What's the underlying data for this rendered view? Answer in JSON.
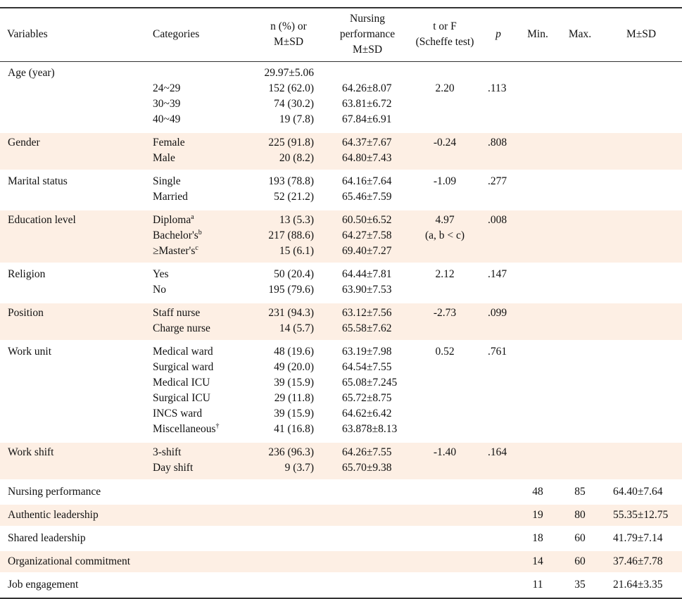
{
  "table": {
    "header": [
      "Variables",
      "Categories",
      "n (%) or M±SD",
      "Nursing performance M±SD",
      "t or F (Scheffe test)",
      "p",
      "Min.",
      "Max.",
      "M±SD"
    ],
    "header_lines": [
      [
        "Variables"
      ],
      [
        "Categories"
      ],
      [
        "n (%) or",
        "M±SD"
      ],
      [
        "Nursing",
        "performance",
        "M±SD"
      ],
      [
        "t or F",
        "(Scheffe  test)"
      ],
      [
        "p"
      ],
      [
        "Min."
      ],
      [
        "Max."
      ],
      [
        "M±SD"
      ]
    ],
    "groups": [
      {
        "variable": "Age (year)",
        "rows": [
          {
            "n": "29.97±5.06"
          },
          {
            "category": "24~29",
            "n": "152 (62.0)",
            "mean": "64.26±8.07",
            "t": "2.20",
            "p": ".113"
          },
          {
            "category": "30~39",
            "n": "74 (30.2)",
            "mean": "63.81±6.72"
          },
          {
            "category": "40~49",
            "n": "19 (7.8)",
            "mean": "67.84±6.91"
          }
        ]
      },
      {
        "variable": "Gender",
        "rows": [
          {
            "category": "Female",
            "n": "225 (91.8)",
            "mean": "64.37±7.67",
            "t": "-0.24",
            "p": ".808"
          },
          {
            "category": "Male",
            "n": "20 (8.2)",
            "mean": "64.80±7.43"
          }
        ]
      },
      {
        "variable": "Marital status",
        "rows": [
          {
            "category": "Single",
            "n": "193 (78.8)",
            "mean": "64.16±7.64",
            "t": "-1.09",
            "p": ".277"
          },
          {
            "category": "Married",
            "n": "52 (21.2)",
            "mean": "65.46±7.59"
          }
        ]
      },
      {
        "variable": "Education level",
        "rows": [
          {
            "category": "Diploma",
            "sup": "a",
            "n": "13 (5.3)",
            "mean": "60.50±6.52",
            "t": "4.97",
            "p": ".008"
          },
          {
            "category": "Bachelor's",
            "sup": "b",
            "n": "217 (88.6)",
            "mean": "64.27±7.58",
            "t": "(a, b < c)"
          },
          {
            "category": "≥Master's",
            "sup": "c",
            "n": "15 (6.1)",
            "mean": "69.40±7.27"
          }
        ]
      },
      {
        "variable": "Religion",
        "rows": [
          {
            "category": "Yes",
            "n": "50 (20.4)",
            "mean": "64.44±7.81",
            "t": "2.12",
            "p": ".147"
          },
          {
            "category": "No",
            "n": "195 (79.6)",
            "mean": "63.90±7.53"
          }
        ]
      },
      {
        "variable": "Position",
        "rows": [
          {
            "category": "Staff nurse",
            "n": "231 (94.3)",
            "mean": "63.12±7.56",
            "t": "-2.73",
            "p": ".099"
          },
          {
            "category": "Charge nurse",
            "n": "14 (5.7)",
            "mean": "65.58±7.62"
          }
        ]
      },
      {
        "variable": "Work unit",
        "rows": [
          {
            "category": "Medical ward",
            "n": "48 (19.6)",
            "mean": "63.19±7.98",
            "t": "0.52",
            "p": ".761"
          },
          {
            "category": "Surgical ward",
            "n": "49 (20.0)",
            "mean": "64.54±7.55"
          },
          {
            "category": "Medical ICU",
            "n": "39 (15.9)",
            "mean": "65.08±7.245"
          },
          {
            "category": "Surgical ICU",
            "n": "29 (11.8)",
            "mean": "65.72±8.75"
          },
          {
            "category": "INCS ward",
            "n": "39 (15.9)",
            "mean": "64.62±6.42"
          },
          {
            "category": "Miscellaneous",
            "sup": "†",
            "n": "41 (16.8)",
            "mean": "63.878±8.13"
          }
        ]
      },
      {
        "variable": "Work shift",
        "rows": [
          {
            "category": "3-shift",
            "n": "236 (96.3)",
            "mean": "64.26±7.55",
            "t": "-1.40",
            "p": ".164"
          },
          {
            "category": "Day shift",
            "n": "9 (3.7)",
            "mean": "65.70±9.38"
          }
        ]
      }
    ],
    "summary": [
      {
        "variable": "Nursing performance",
        "min": "48",
        "max": "85",
        "msd": "64.40±7.64"
      },
      {
        "variable": "Authentic leadership",
        "min": "19",
        "max": "80",
        "msd": "55.35±12.75"
      },
      {
        "variable": "Shared leadership",
        "min": "18",
        "max": "60",
        "msd": "41.79±7.14"
      },
      {
        "variable": "Organizational commitment",
        "min": "14",
        "max": "60",
        "msd": "37.46±7.78"
      },
      {
        "variable": "Job engagement",
        "min": "11",
        "max": "35",
        "msd": "21.64±3.35"
      }
    ]
  }
}
